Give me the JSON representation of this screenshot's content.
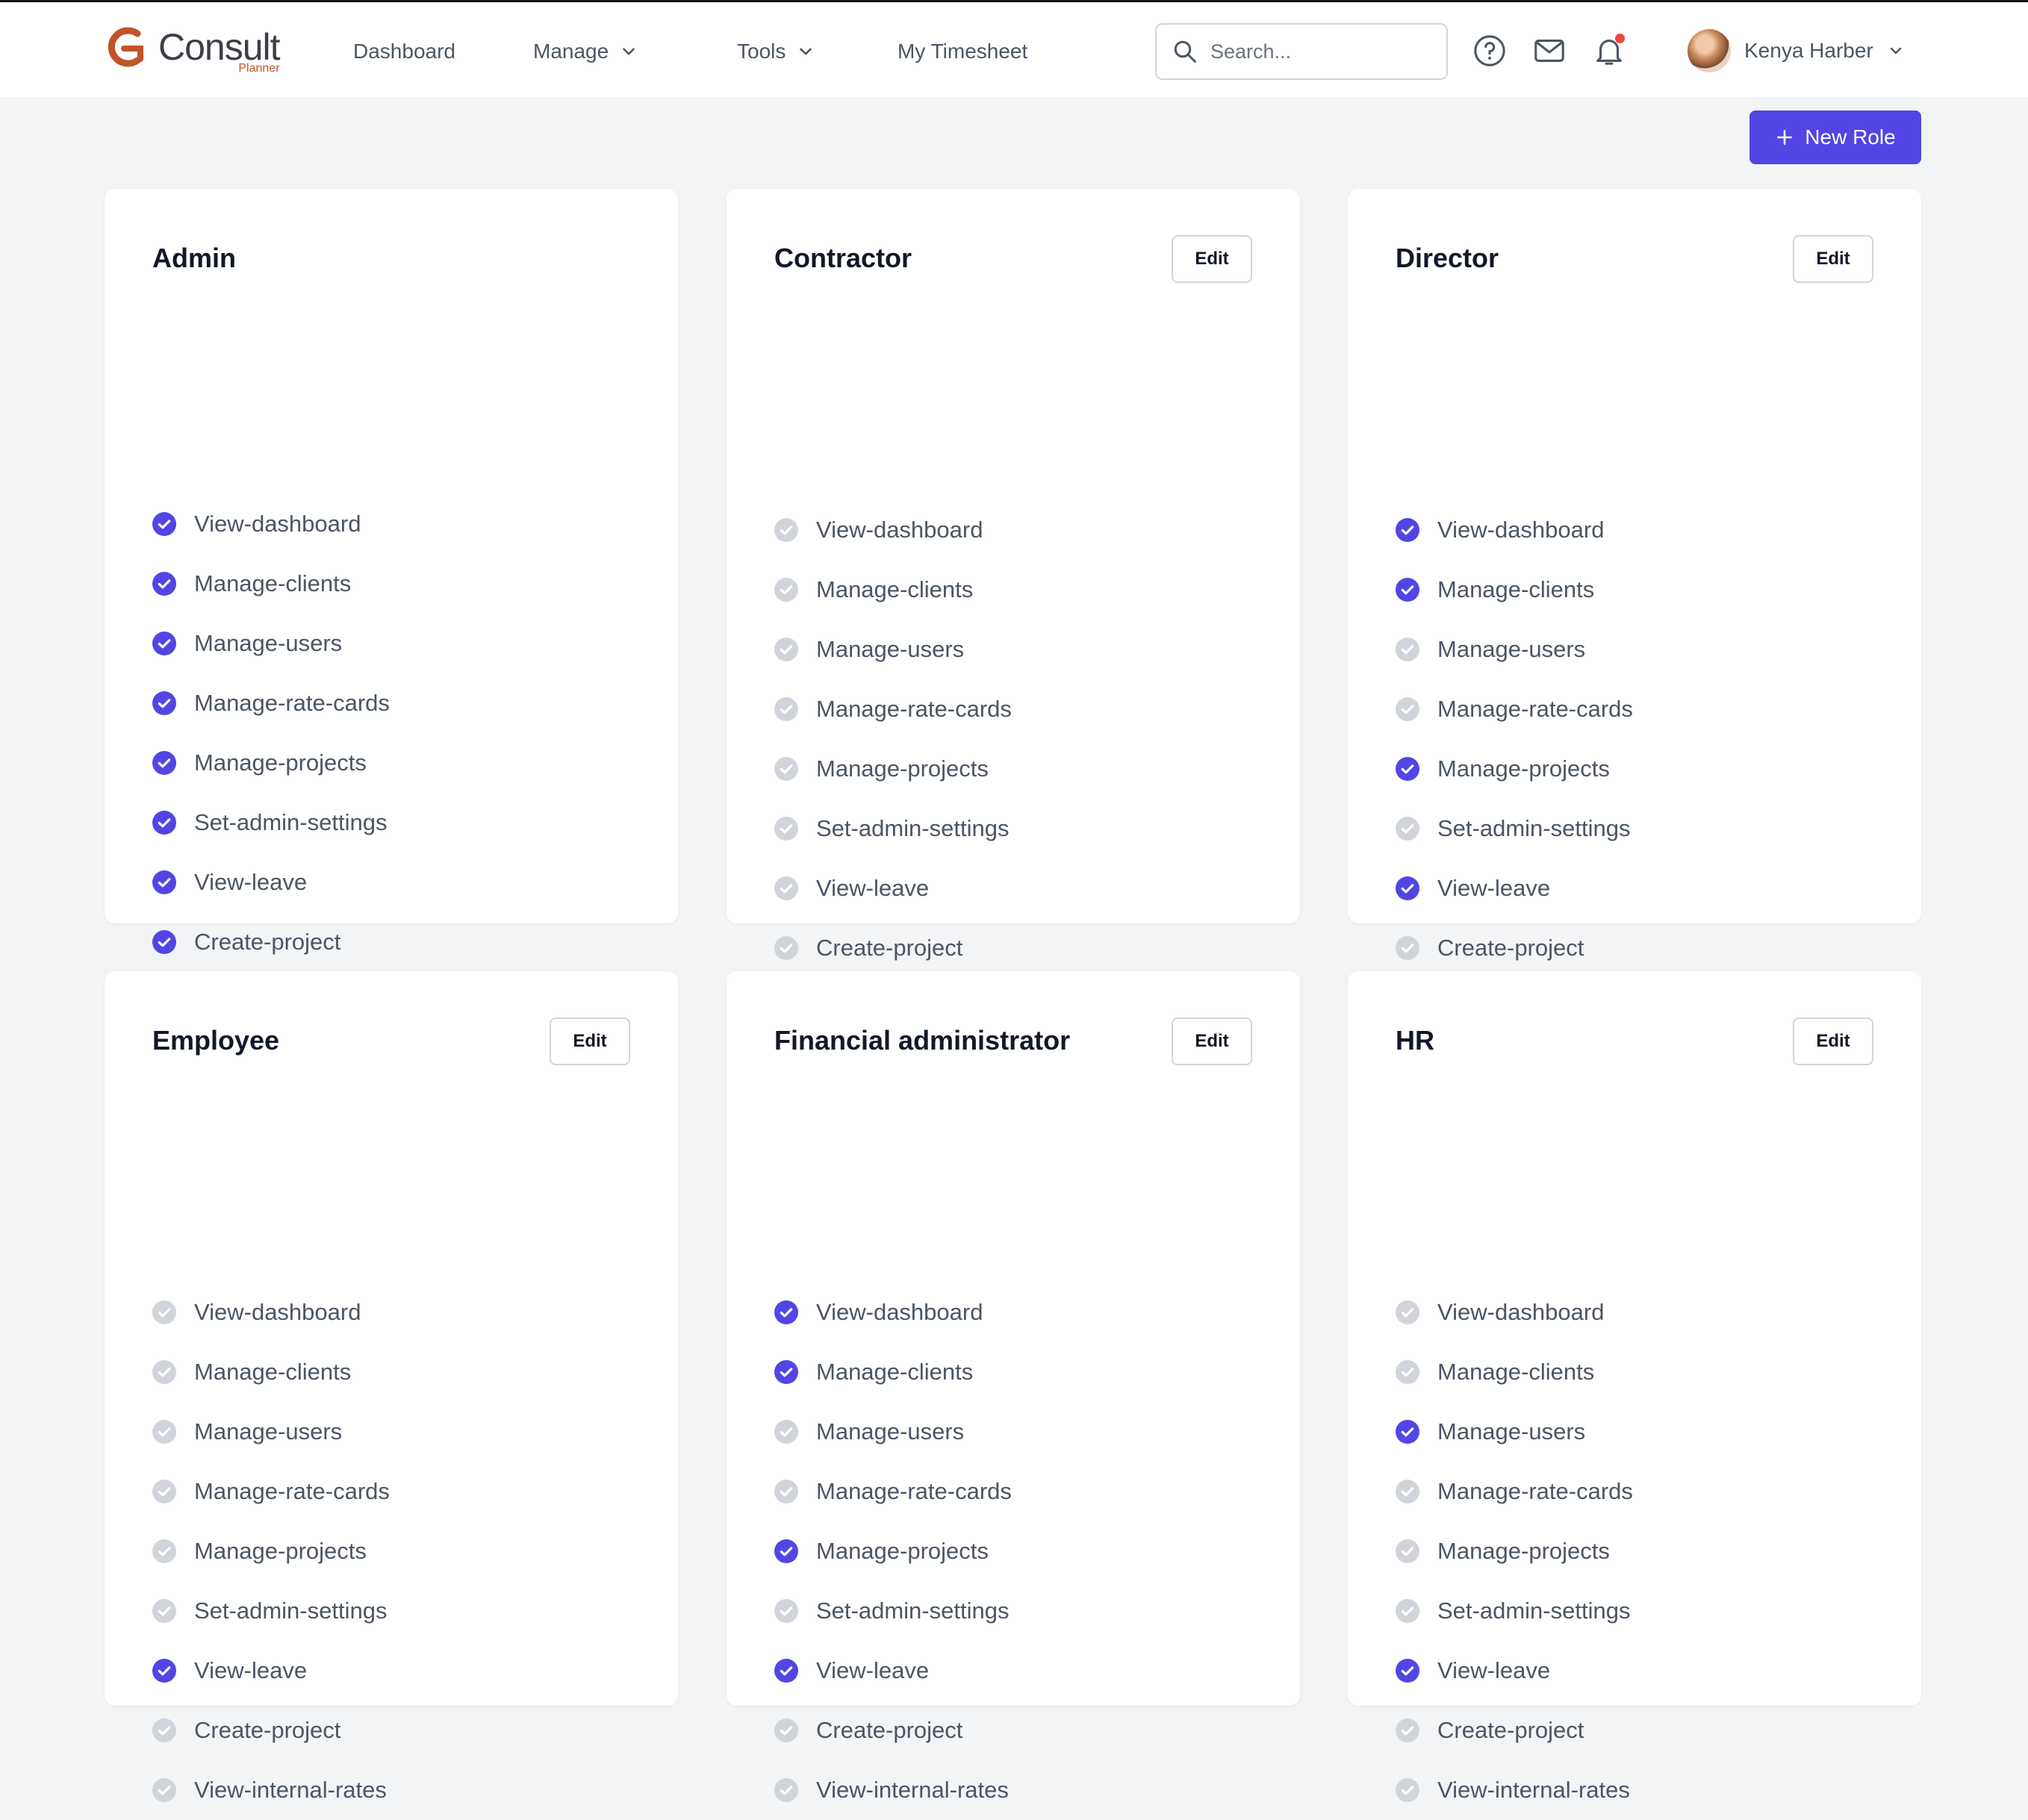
{
  "app": {
    "logo_main": "Consult",
    "logo_sub": "Planner"
  },
  "nav": [
    {
      "label": "Dashboard",
      "dropdown": false
    },
    {
      "label": "Manage",
      "dropdown": true
    },
    {
      "label": "Tools",
      "dropdown": true
    },
    {
      "label": "My Timesheet",
      "dropdown": false
    }
  ],
  "search": {
    "placeholder": "Search...",
    "value": ""
  },
  "user": {
    "name": "Kenya Harber"
  },
  "actions": {
    "new_role_label": "New Role",
    "edit_label": "Edit"
  },
  "colors": {
    "accent": "#5146e4",
    "unchecked": "#d1d5db",
    "notification": "#ef4444",
    "logo": "#c0542a"
  },
  "permission_names": [
    "View-dashboard",
    "Manage-clients",
    "Manage-users",
    "Manage-rate-cards",
    "Manage-projects",
    "Set-admin-settings",
    "View-leave",
    "Create-project",
    "View-internal-rates"
  ],
  "roles": [
    {
      "name": "Admin",
      "editable": false,
      "permissions": [
        true,
        true,
        true,
        true,
        true,
        true,
        true,
        true,
        true
      ]
    },
    {
      "name": "Contractor",
      "editable": true,
      "permissions": [
        false,
        false,
        false,
        false,
        false,
        false,
        false,
        false,
        false
      ]
    },
    {
      "name": "Director",
      "editable": true,
      "permissions": [
        true,
        true,
        false,
        false,
        true,
        false,
        true,
        false,
        false
      ]
    },
    {
      "name": "Employee",
      "editable": true,
      "permissions": [
        false,
        false,
        false,
        false,
        false,
        false,
        true,
        false,
        false
      ]
    },
    {
      "name": "Financial administrator",
      "editable": true,
      "permissions": [
        true,
        true,
        false,
        false,
        true,
        false,
        true,
        false,
        false
      ]
    },
    {
      "name": "HR",
      "editable": true,
      "permissions": [
        false,
        false,
        true,
        false,
        false,
        false,
        true,
        false,
        false
      ]
    }
  ]
}
